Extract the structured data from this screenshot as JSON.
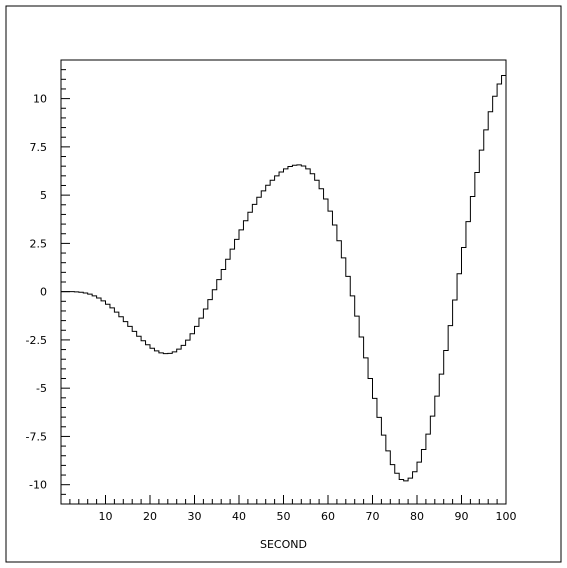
{
  "chart_data": {
    "type": "line",
    "style": "histogram-step",
    "title": "",
    "xlabel": "SECOND",
    "ylabel": "",
    "xlim": [
      0,
      100
    ],
    "ylim": [
      -11,
      12
    ],
    "grid": false,
    "legend": "none",
    "line_color": "#000000",
    "x_ticks": [
      10,
      20,
      30,
      40,
      50,
      60,
      70,
      80,
      90,
      100
    ],
    "y_ticks": [
      -10,
      -7.5,
      -5,
      -2.5,
      0,
      2.5,
      5,
      7.5,
      10
    ],
    "x_tick_labels": [
      "10",
      "20",
      "30",
      "40",
      "50",
      "60",
      "70",
      "80",
      "90",
      "100"
    ],
    "y_tick_labels": [
      "-10",
      "-7.5",
      "-5",
      "-2.5",
      "0",
      "2.5",
      "5",
      "7.5",
      "10"
    ],
    "bin_width": 1,
    "values": [
      0.0,
      0.0,
      0.0,
      -0.01,
      -0.03,
      -0.07,
      -0.13,
      -0.22,
      -0.33,
      -0.48,
      -0.65,
      -0.84,
      -1.06,
      -1.3,
      -1.55,
      -1.8,
      -2.06,
      -2.31,
      -2.54,
      -2.75,
      -2.93,
      -3.07,
      -3.17,
      -3.21,
      -3.2,
      -3.12,
      -2.98,
      -2.78,
      -2.51,
      -2.18,
      -1.8,
      -1.37,
      -0.9,
      -0.41,
      0.1,
      0.62,
      1.15,
      1.68,
      2.2,
      2.71,
      3.2,
      3.67,
      4.11,
      4.52,
      4.89,
      5.22,
      5.51,
      5.77,
      6.0,
      6.2,
      6.36,
      6.48,
      6.55,
      6.57,
      6.51,
      6.36,
      6.11,
      5.77,
      5.33,
      4.8,
      4.17,
      3.45,
      2.64,
      1.75,
      0.79,
      -0.22,
      -1.27,
      -2.35,
      -3.43,
      -4.5,
      -5.53,
      -6.51,
      -7.43,
      -8.25,
      -8.96,
      -9.41,
      -9.73,
      -9.8,
      -9.66,
      -9.33,
      -8.83,
      -8.18,
      -7.38,
      -6.45,
      -5.41,
      -4.27,
      -3.05,
      -1.76,
      -0.43,
      0.93,
      2.29,
      3.63,
      4.93,
      6.17,
      7.33,
      8.38,
      9.32,
      10.12,
      10.76,
      11.2
    ]
  }
}
